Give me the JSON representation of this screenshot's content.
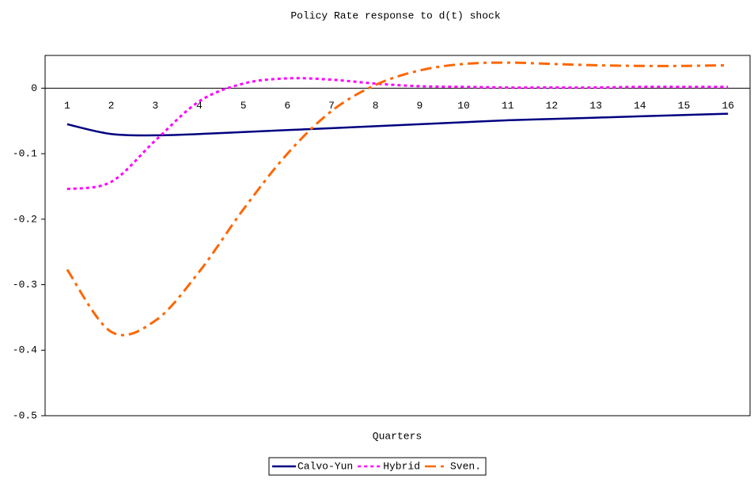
{
  "chart_data": {
    "type": "line",
    "title": "Policy Rate response to d(t) shock",
    "x_label": "Quarters",
    "categories": [
      "1",
      "2",
      "3",
      "4",
      "5",
      "6",
      "7",
      "8",
      "9",
      "10",
      "11",
      "12",
      "13",
      "14",
      "15",
      "16"
    ],
    "series": [
      {
        "name": "Calvo-Yun",
        "color": "#000080",
        "dash": "solid",
        "values": [
          -0.055,
          -0.07,
          -0.072,
          -0.07,
          -0.067,
          -0.064,
          -0.061,
          -0.058,
          -0.055,
          -0.052,
          -0.049,
          -0.047,
          -0.045,
          -0.043,
          -0.041,
          -0.039
        ]
      },
      {
        "name": "Hybrid",
        "color": "#ff00ff",
        "dash": "dot",
        "values": [
          -0.154,
          -0.143,
          -0.08,
          -0.02,
          0.007,
          0.015,
          0.013,
          0.007,
          0.003,
          0.002,
          0.001,
          0.001,
          0.001,
          0.002,
          0.002,
          0.002
        ]
      },
      {
        "name": "Sven.",
        "color": "#ff6600",
        "dash": "dashdot",
        "values": [
          -0.277,
          -0.372,
          -0.355,
          -0.28,
          -0.185,
          -0.1,
          -0.035,
          0.005,
          0.027,
          0.037,
          0.039,
          0.037,
          0.035,
          0.034,
          0.034,
          0.035
        ]
      }
    ],
    "ylim": [
      -0.5,
      0.05
    ],
    "yticks": [
      -0.5,
      -0.4,
      -0.3,
      -0.2,
      -0.1,
      0
    ],
    "legend": "bottom"
  }
}
